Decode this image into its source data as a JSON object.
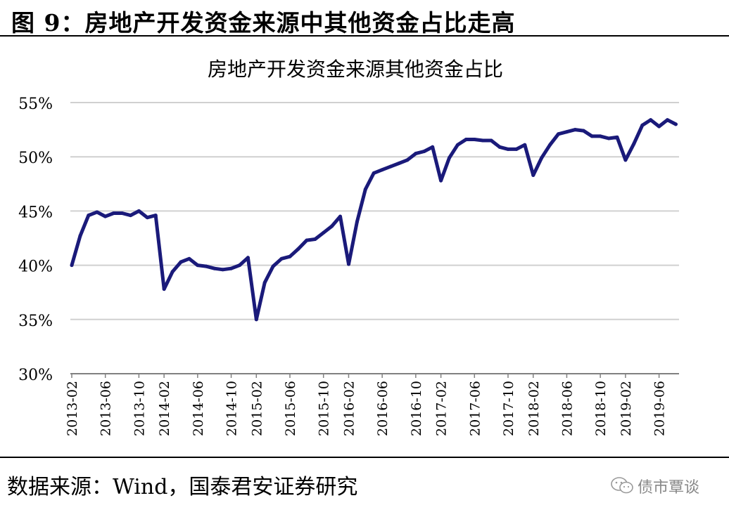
{
  "header": {
    "figure_title": "图 9：房地产开发资金来源中其他资金占比走高"
  },
  "footer": {
    "source": "数据来源：Wind，国泰君安证券研究"
  },
  "watermark": {
    "text": "债市覃谈",
    "icon": "wechat-icon"
  },
  "colors": {
    "line": "#1a1a7a",
    "grid": "#d0d0d0",
    "axis": "#808080"
  },
  "chart_data": {
    "type": "line",
    "title": "房地产开发资金来源其他资金占比",
    "xlabel": "",
    "ylabel": "",
    "ylim": [
      30,
      55
    ],
    "yticks": [
      "30%",
      "35%",
      "40%",
      "45%",
      "50%",
      "55%"
    ],
    "ytick_values": [
      30,
      35,
      40,
      45,
      50,
      55
    ],
    "grid": true,
    "legend": "none",
    "xtick_labels": [
      "2013-02",
      "2013-06",
      "2013-10",
      "2014-02",
      "2014-06",
      "2014-10",
      "2015-02",
      "2015-06",
      "2015-10",
      "2016-02",
      "2016-06",
      "2016-10",
      "2017-02",
      "2017-06",
      "2017-10",
      "2018-02",
      "2018-06",
      "2018-10",
      "2019-02",
      "2019-06"
    ],
    "x": [
      "2013-02",
      "2013-03",
      "2013-04",
      "2013-05",
      "2013-06",
      "2013-07",
      "2013-08",
      "2013-09",
      "2013-10",
      "2013-11",
      "2013-12",
      "2014-02",
      "2014-03",
      "2014-04",
      "2014-05",
      "2014-06",
      "2014-07",
      "2014-08",
      "2014-09",
      "2014-10",
      "2014-11",
      "2014-12",
      "2015-02",
      "2015-03",
      "2015-04",
      "2015-05",
      "2015-06",
      "2015-07",
      "2015-08",
      "2015-09",
      "2015-10",
      "2015-11",
      "2015-12",
      "2016-02",
      "2016-03",
      "2016-04",
      "2016-05",
      "2016-06",
      "2016-07",
      "2016-08",
      "2016-09",
      "2016-10",
      "2016-11",
      "2016-12",
      "2017-02",
      "2017-03",
      "2017-04",
      "2017-05",
      "2017-06",
      "2017-07",
      "2017-08",
      "2017-09",
      "2017-10",
      "2017-11",
      "2017-12",
      "2018-02",
      "2018-03",
      "2018-04",
      "2018-05",
      "2018-06",
      "2018-07",
      "2018-08",
      "2018-09",
      "2018-10",
      "2018-11",
      "2018-12",
      "2019-02",
      "2019-03",
      "2019-04",
      "2019-05",
      "2019-06",
      "2019-07",
      "2019-08"
    ],
    "series": [
      {
        "values": [
          40.0,
          42.7,
          44.6,
          44.9,
          44.5,
          44.8,
          44.8,
          44.6,
          45.0,
          44.4,
          44.6,
          37.8,
          39.4,
          40.3,
          40.6,
          40.0,
          39.9,
          39.7,
          39.6,
          39.7,
          40.0,
          40.7,
          35.0,
          38.4,
          39.9,
          40.6,
          40.8,
          41.5,
          42.3,
          42.4,
          43.0,
          43.6,
          44.5,
          40.1,
          44.0,
          47.0,
          48.5,
          48.8,
          49.1,
          49.4,
          49.7,
          50.3,
          50.5,
          50.9,
          47.8,
          49.9,
          51.1,
          51.6,
          51.6,
          51.5,
          51.5,
          50.9,
          50.7,
          50.7,
          51.1,
          48.3,
          49.9,
          51.1,
          52.1,
          52.3,
          52.5,
          52.4,
          51.9,
          51.9,
          51.7,
          51.8,
          49.7,
          51.2,
          52.9,
          53.4,
          52.8,
          53.4,
          53.0
        ]
      }
    ]
  }
}
